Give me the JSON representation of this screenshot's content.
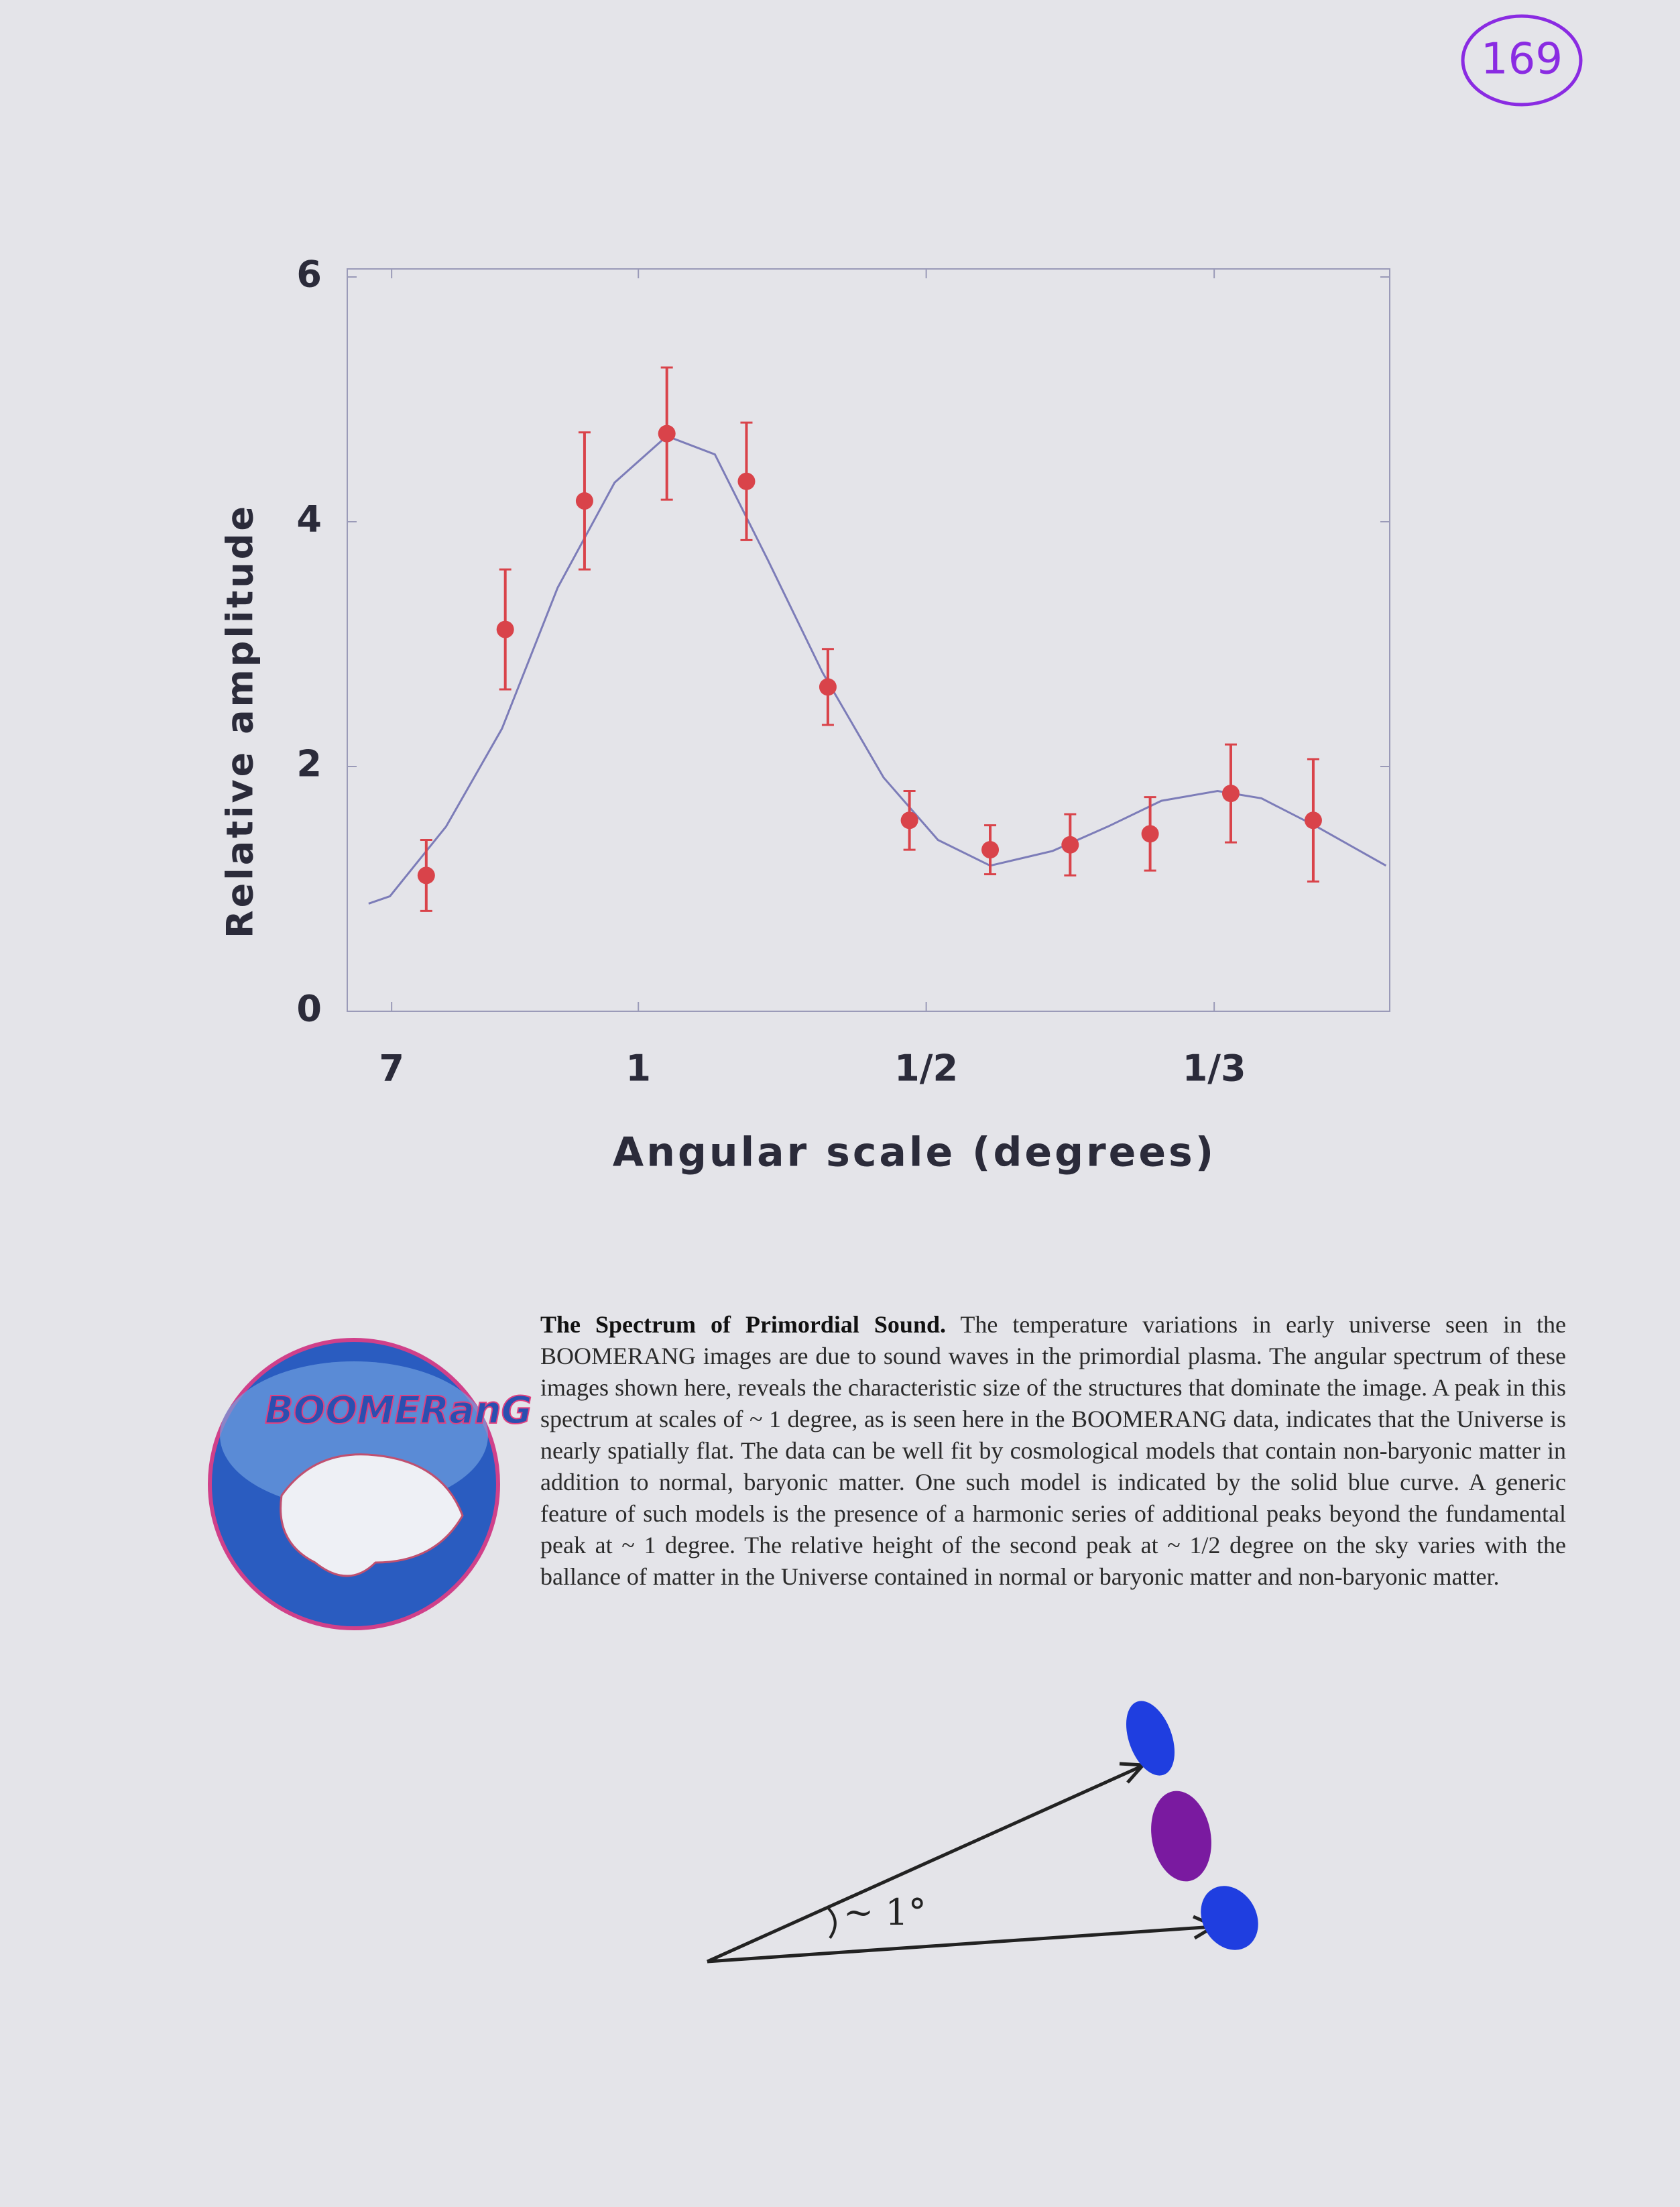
{
  "page_number": "169",
  "chart_data": {
    "type": "errorbar-line",
    "x_label": "Angular scale (degrees)",
    "y_label": "Relative amplitude",
    "x_scale": "reciprocal",
    "xlim": [
      25,
      0.277
    ],
    "xticks": [
      7,
      1,
      {
        "value": 0.5,
        "label": "1/2"
      },
      {
        "value": 0.3333,
        "label": "1/3"
      }
    ],
    "ylim": [
      0,
      6
    ],
    "yticks": [
      0,
      2,
      4,
      6
    ],
    "series": [
      {
        "kind": "line",
        "color": "#7c7cb8",
        "x": [
          15.9,
          7.3,
          3.01,
          1.9,
          1.39,
          1.09,
          0.91,
          0.79,
          0.69,
          0.61,
          0.54,
          0.49,
          0.45,
          0.41,
          0.38,
          0.355,
          0.332,
          0.316,
          0.298,
          0.278
        ],
        "values": [
          0.88,
          0.94,
          1.51,
          2.31,
          3.46,
          4.32,
          4.7,
          4.55,
          3.69,
          2.77,
          1.91,
          1.4,
          1.19,
          1.31,
          1.51,
          1.72,
          1.8,
          1.74,
          1.51,
          1.19
        ]
      },
      {
        "kind": "errorbar",
        "color": "#d9434a",
        "x": [
          3.8,
          1.86,
          1.23,
          0.91,
          0.727,
          0.603,
          0.515,
          0.45,
          0.4,
          0.36,
          0.327,
          0.299
        ],
        "values": [
          1.11,
          3.12,
          4.17,
          4.72,
          4.33,
          2.65,
          1.56,
          1.32,
          1.36,
          1.45,
          1.78,
          1.56
        ],
        "errors": [
          0.29,
          0.49,
          0.56,
          0.54,
          0.48,
          0.31,
          0.24,
          0.2,
          0.25,
          0.3,
          0.4,
          0.5
        ]
      }
    ]
  },
  "logo": {
    "label": "BOOMERanG"
  },
  "caption": {
    "title": "The Spectrum of Primordial Sound.",
    "body": "The temperature variations in early universe seen in the BOOMERANG images are due to sound waves in the primordial plasma. The angular spectrum of these images shown here, reveals the characteristic size of the structures that dominate the image. A peak in this spectrum at scales of ~ 1 degree, as is seen here in the BOOMERANG data, indicates that the Universe is nearly spatially flat. The data can be well fit by cosmological models that contain non-baryonic matter in addition to normal, baryonic matter. One such model is indicated by the solid blue curve. A generic feature of such models is the presence of a harmonic series of additional peaks beyond the fundamental peak at ~ 1 degree. The relative height of the second peak at ~ 1/2 degree on the sky varies with the ballance of matter in the Universe contained in normal or baryonic matter and non-baryonic matter."
  },
  "diagram": {
    "label": "~ 1°"
  }
}
